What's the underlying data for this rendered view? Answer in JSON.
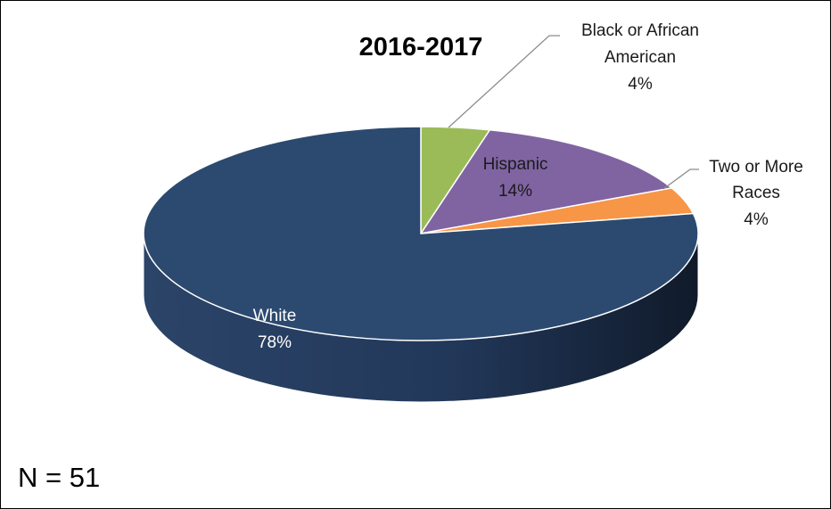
{
  "chart_data": {
    "type": "pie",
    "title": "2016-2017",
    "note": "N = 51",
    "slices": [
      {
        "label_lines": [
          "Black or African",
          "American"
        ],
        "percent_label": "4%",
        "value": 4,
        "color": "#9bbb59"
      },
      {
        "label_lines": [
          "Hispanic"
        ],
        "percent_label": "14%",
        "value": 14,
        "color": "#8064a2"
      },
      {
        "label_lines": [
          "Two or More",
          "Races"
        ],
        "percent_label": "4%",
        "value": 4,
        "color": "#f79646"
      },
      {
        "label_lines": [
          "White"
        ],
        "percent_label": "78%",
        "value": 78,
        "color": "#2c4a70"
      }
    ]
  }
}
